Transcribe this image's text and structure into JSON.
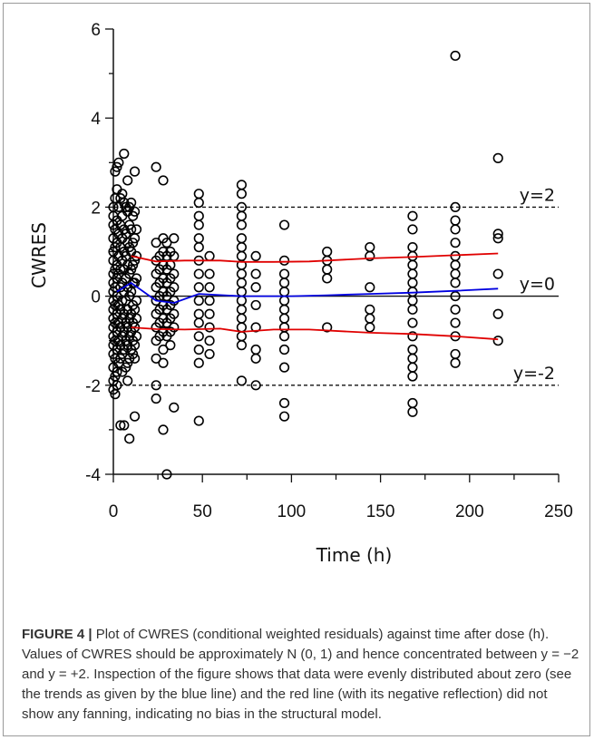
{
  "chart_data": {
    "type": "scatter",
    "xlabel": "Time (h)",
    "ylabel": "CWRES",
    "xlim": [
      0,
      250
    ],
    "ylim": [
      -4,
      6
    ],
    "xticks": [
      0,
      50,
      100,
      150,
      200,
      250
    ],
    "yticks": [
      -4,
      -2,
      0,
      2,
      4,
      6
    ],
    "grid": false,
    "reference_lines": [
      {
        "y": 2,
        "label": "y=2",
        "style": "dashed"
      },
      {
        "y": 0,
        "label": "y=0",
        "style": "solid"
      },
      {
        "y": -2,
        "label": "y=-2",
        "style": "dashed"
      }
    ],
    "points": [
      [
        0,
        2.0
      ],
      [
        0,
        1.8
      ],
      [
        0,
        1.6
      ],
      [
        0,
        1.3
      ],
      [
        0,
        1.0
      ],
      [
        0,
        0.8
      ],
      [
        0,
        0.5
      ],
      [
        0,
        0.3
      ],
      [
        0,
        0.1
      ],
      [
        0,
        -0.1
      ],
      [
        0,
        -0.3
      ],
      [
        0,
        -0.5
      ],
      [
        0,
        -0.7
      ],
      [
        0,
        -0.9
      ],
      [
        0,
        -1.1
      ],
      [
        0,
        -1.3
      ],
      [
        0,
        -1.6
      ],
      [
        0,
        -1.9
      ],
      [
        0,
        -2.1
      ],
      [
        1,
        2.8
      ],
      [
        1,
        2.2
      ],
      [
        1,
        1.5
      ],
      [
        1,
        1.1
      ],
      [
        1,
        0.6
      ],
      [
        1,
        0.2
      ],
      [
        1,
        -0.2
      ],
      [
        1,
        -0.6
      ],
      [
        1,
        -1.0
      ],
      [
        1,
        -1.4
      ],
      [
        1,
        -1.8
      ],
      [
        1,
        -2.2
      ],
      [
        2,
        2.9
      ],
      [
        2,
        2.4
      ],
      [
        2,
        1.7
      ],
      [
        2,
        1.2
      ],
      [
        2,
        0.7
      ],
      [
        2,
        0.4
      ],
      [
        2,
        0.0
      ],
      [
        2,
        -0.4
      ],
      [
        2,
        -0.8
      ],
      [
        2,
        -1.2
      ],
      [
        2,
        -1.7
      ],
      [
        2,
        -2.0
      ],
      [
        3,
        3.0
      ],
      [
        3,
        2.0
      ],
      [
        3,
        1.4
      ],
      [
        3,
        0.9
      ],
      [
        3,
        0.5
      ],
      [
        3,
        -0.2
      ],
      [
        3,
        -0.6
      ],
      [
        3,
        -1.0
      ],
      [
        3,
        -1.5
      ],
      [
        4,
        2.2
      ],
      [
        4,
        1.6
      ],
      [
        4,
        1.1
      ],
      [
        4,
        0.6
      ],
      [
        4,
        0.2
      ],
      [
        4,
        -0.3
      ],
      [
        4,
        -0.7
      ],
      [
        4,
        -1.1
      ],
      [
        4,
        -1.4
      ],
      [
        4,
        -2.9
      ],
      [
        5,
        2.3
      ],
      [
        5,
        1.8
      ],
      [
        5,
        1.3
      ],
      [
        5,
        0.8
      ],
      [
        5,
        0.3
      ],
      [
        5,
        -0.1
      ],
      [
        5,
        -0.5
      ],
      [
        5,
        -0.9
      ],
      [
        5,
        -1.3
      ],
      [
        5,
        -1.7
      ],
      [
        6,
        3.2
      ],
      [
        6,
        2.1
      ],
      [
        6,
        1.5
      ],
      [
        6,
        1.0
      ],
      [
        6,
        0.6
      ],
      [
        6,
        0.1
      ],
      [
        6,
        -0.4
      ],
      [
        6,
        -0.8
      ],
      [
        6,
        -1.2
      ],
      [
        6,
        -2.9
      ],
      [
        7,
        2.0
      ],
      [
        7,
        1.4
      ],
      [
        7,
        0.9
      ],
      [
        7,
        0.4
      ],
      [
        7,
        -0.1
      ],
      [
        7,
        -0.6
      ],
      [
        7,
        -1.0
      ],
      [
        7,
        -1.6
      ],
      [
        8,
        2.6
      ],
      [
        8,
        1.9
      ],
      [
        8,
        1.2
      ],
      [
        8,
        0.7
      ],
      [
        8,
        0.2
      ],
      [
        8,
        -0.3
      ],
      [
        8,
        -0.7
      ],
      [
        8,
        -1.1
      ],
      [
        8,
        -1.5
      ],
      [
        8,
        -1.9
      ],
      [
        9,
        2.0
      ],
      [
        9,
        1.6
      ],
      [
        9,
        1.1
      ],
      [
        9,
        0.5
      ],
      [
        9,
        0.0
      ],
      [
        9,
        -0.5
      ],
      [
        9,
        -0.9
      ],
      [
        9,
        -1.4
      ],
      [
        9,
        -3.2
      ],
      [
        10,
        2.1
      ],
      [
        10,
        1.5
      ],
      [
        10,
        1.0
      ],
      [
        10,
        0.6
      ],
      [
        10,
        0.1
      ],
      [
        10,
        -0.4
      ],
      [
        10,
        -0.8
      ],
      [
        10,
        -1.2
      ],
      [
        11,
        1.8
      ],
      [
        11,
        1.2
      ],
      [
        11,
        0.7
      ],
      [
        11,
        0.3
      ],
      [
        11,
        -0.2
      ],
      [
        11,
        -0.6
      ],
      [
        11,
        -1.0
      ],
      [
        11,
        -1.3
      ],
      [
        12,
        2.8
      ],
      [
        12,
        1.9
      ],
      [
        12,
        1.3
      ],
      [
        12,
        0.8
      ],
      [
        12,
        0.3
      ],
      [
        12,
        -0.3
      ],
      [
        12,
        -0.7
      ],
      [
        12,
        -1.1
      ],
      [
        12,
        -1.4
      ],
      [
        12,
        -2.7
      ],
      [
        13,
        1.5
      ],
      [
        13,
        0.9
      ],
      [
        13,
        0.4
      ],
      [
        13,
        -0.1
      ],
      [
        13,
        -0.5
      ],
      [
        13,
        -0.9
      ],
      [
        24,
        2.9
      ],
      [
        24,
        1.2
      ],
      [
        24,
        0.8
      ],
      [
        24,
        0.5
      ],
      [
        24,
        0.2
      ],
      [
        24,
        -0.1
      ],
      [
        24,
        -0.4
      ],
      [
        24,
        -0.7
      ],
      [
        24,
        -1.0
      ],
      [
        24,
        -1.4
      ],
      [
        24,
        -2.0
      ],
      [
        24,
        -2.3
      ],
      [
        26,
        0.9
      ],
      [
        26,
        0.6
      ],
      [
        26,
        0.3
      ],
      [
        26,
        0.0
      ],
      [
        26,
        -0.3
      ],
      [
        26,
        -0.6
      ],
      [
        26,
        -0.9
      ],
      [
        28,
        2.6
      ],
      [
        28,
        1.3
      ],
      [
        28,
        1.0
      ],
      [
        28,
        0.7
      ],
      [
        28,
        0.4
      ],
      [
        28,
        0.1
      ],
      [
        28,
        -0.2
      ],
      [
        28,
        -0.5
      ],
      [
        28,
        -0.8
      ],
      [
        28,
        -1.2
      ],
      [
        28,
        -1.5
      ],
      [
        28,
        -3.0
      ],
      [
        30,
        1.2
      ],
      [
        30,
        0.9
      ],
      [
        30,
        0.6
      ],
      [
        30,
        0.3
      ],
      [
        30,
        0.0
      ],
      [
        30,
        -0.3
      ],
      [
        30,
        -0.6
      ],
      [
        30,
        -0.9
      ],
      [
        30,
        -4.0
      ],
      [
        32,
        1.0
      ],
      [
        32,
        0.7
      ],
      [
        32,
        0.4
      ],
      [
        32,
        0.1
      ],
      [
        32,
        -0.2
      ],
      [
        32,
        -0.5
      ],
      [
        32,
        -0.8
      ],
      [
        32,
        -1.1
      ],
      [
        34,
        1.3
      ],
      [
        34,
        0.9
      ],
      [
        34,
        0.5
      ],
      [
        34,
        0.2
      ],
      [
        34,
        -0.1
      ],
      [
        34,
        -0.4
      ],
      [
        34,
        -0.7
      ],
      [
        34,
        -2.5
      ],
      [
        48,
        2.3
      ],
      [
        48,
        2.1
      ],
      [
        48,
        1.8
      ],
      [
        48,
        1.6
      ],
      [
        48,
        1.3
      ],
      [
        48,
        1.1
      ],
      [
        48,
        0.8
      ],
      [
        48,
        0.5
      ],
      [
        48,
        0.2
      ],
      [
        48,
        -0.1
      ],
      [
        48,
        -0.4
      ],
      [
        48,
        -0.6
      ],
      [
        48,
        -0.9
      ],
      [
        48,
        -1.2
      ],
      [
        48,
        -1.5
      ],
      [
        48,
        -2.8
      ],
      [
        54,
        0.9
      ],
      [
        54,
        0.5
      ],
      [
        54,
        0.2
      ],
      [
        54,
        -0.1
      ],
      [
        54,
        -0.4
      ],
      [
        54,
        -0.7
      ],
      [
        54,
        -1.0
      ],
      [
        54,
        -1.3
      ],
      [
        72,
        2.5
      ],
      [
        72,
        2.3
      ],
      [
        72,
        2.0
      ],
      [
        72,
        1.8
      ],
      [
        72,
        1.6
      ],
      [
        72,
        1.3
      ],
      [
        72,
        1.1
      ],
      [
        72,
        0.9
      ],
      [
        72,
        0.7
      ],
      [
        72,
        0.5
      ],
      [
        72,
        0.3
      ],
      [
        72,
        0.1
      ],
      [
        72,
        -0.1
      ],
      [
        72,
        -0.3
      ],
      [
        72,
        -0.5
      ],
      [
        72,
        -0.7
      ],
      [
        72,
        -0.9
      ],
      [
        72,
        -1.1
      ],
      [
        72,
        -1.9
      ],
      [
        80,
        0.9
      ],
      [
        80,
        0.5
      ],
      [
        80,
        0.2
      ],
      [
        80,
        -0.2
      ],
      [
        80,
        -0.7
      ],
      [
        80,
        -1.2
      ],
      [
        80,
        -1.4
      ],
      [
        80,
        -2.0
      ],
      [
        96,
        1.6
      ],
      [
        96,
        0.8
      ],
      [
        96,
        0.5
      ],
      [
        96,
        0.3
      ],
      [
        96,
        0.1
      ],
      [
        96,
        -0.1
      ],
      [
        96,
        -0.3
      ],
      [
        96,
        -0.5
      ],
      [
        96,
        -0.7
      ],
      [
        96,
        -0.9
      ],
      [
        96,
        -1.2
      ],
      [
        96,
        -1.6
      ],
      [
        96,
        -2.4
      ],
      [
        96,
        -2.7
      ],
      [
        120,
        1.0
      ],
      [
        120,
        0.8
      ],
      [
        120,
        0.6
      ],
      [
        120,
        0.4
      ],
      [
        120,
        -0.7
      ],
      [
        144,
        1.1
      ],
      [
        144,
        0.9
      ],
      [
        144,
        0.2
      ],
      [
        144,
        -0.3
      ],
      [
        144,
        -0.5
      ],
      [
        144,
        -0.7
      ],
      [
        168,
        1.8
      ],
      [
        168,
        1.5
      ],
      [
        168,
        1.1
      ],
      [
        168,
        0.9
      ],
      [
        168,
        0.7
      ],
      [
        168,
        0.5
      ],
      [
        168,
        0.3
      ],
      [
        168,
        0.1
      ],
      [
        168,
        -0.1
      ],
      [
        168,
        -0.3
      ],
      [
        168,
        -0.6
      ],
      [
        168,
        -0.9
      ],
      [
        168,
        -1.2
      ],
      [
        168,
        -1.4
      ],
      [
        168,
        -1.6
      ],
      [
        168,
        -1.8
      ],
      [
        168,
        -2.4
      ],
      [
        168,
        -2.6
      ],
      [
        192,
        5.4
      ],
      [
        192,
        2.0
      ],
      [
        192,
        1.7
      ],
      [
        192,
        1.5
      ],
      [
        192,
        1.2
      ],
      [
        192,
        0.9
      ],
      [
        192,
        0.7
      ],
      [
        192,
        0.5
      ],
      [
        192,
        0.3
      ],
      [
        192,
        0.0
      ],
      [
        192,
        -0.3
      ],
      [
        192,
        -0.6
      ],
      [
        192,
        -0.9
      ],
      [
        192,
        -1.3
      ],
      [
        192,
        -1.5
      ],
      [
        216,
        3.1
      ],
      [
        216,
        1.4
      ],
      [
        216,
        1.3
      ],
      [
        216,
        0.5
      ],
      [
        216,
        -0.4
      ],
      [
        216,
        -1.0
      ]
    ],
    "trend_lines": [
      {
        "color": "#0000e0",
        "points": [
          [
            2,
            0.1
          ],
          [
            10,
            0.3
          ],
          [
            24,
            -0.1
          ],
          [
            34,
            -0.15
          ],
          [
            48,
            0.05
          ],
          [
            72,
            0.0
          ],
          [
            100,
            0.0
          ],
          [
            120,
            0.02
          ],
          [
            144,
            0.05
          ],
          [
            168,
            0.08
          ],
          [
            192,
            0.12
          ],
          [
            216,
            0.17
          ]
        ]
      },
      {
        "color": "#e00000",
        "points": [
          [
            10,
            0.9
          ],
          [
            24,
            0.78
          ],
          [
            40,
            0.8
          ],
          [
            60,
            0.8
          ],
          [
            72,
            0.77
          ],
          [
            90,
            0.77
          ],
          [
            110,
            0.78
          ],
          [
            144,
            0.85
          ],
          [
            168,
            0.88
          ],
          [
            192,
            0.92
          ],
          [
            216,
            0.96
          ]
        ]
      },
      {
        "color": "#e00000",
        "points": [
          [
            10,
            -0.7
          ],
          [
            24,
            -0.74
          ],
          [
            40,
            -0.75
          ],
          [
            60,
            -0.73
          ],
          [
            72,
            -0.8
          ],
          [
            90,
            -0.75
          ],
          [
            110,
            -0.75
          ],
          [
            144,
            -0.82
          ],
          [
            168,
            -0.85
          ],
          [
            192,
            -0.9
          ],
          [
            216,
            -0.97
          ]
        ]
      }
    ]
  },
  "caption": {
    "lead": "FIGURE 4 |",
    "text": " Plot of CWRES (conditional weighted residuals) against time after dose (h). Values of CWRES should be approximately N (0, 1) and hence concentrated between y = −2 and y = +2. Inspection of the figure shows that data were evenly distributed about zero (see the trends as given by the blue line) and the red line (with its negative reflection) did not show any fanning, indicating no bias in the structural model."
  }
}
